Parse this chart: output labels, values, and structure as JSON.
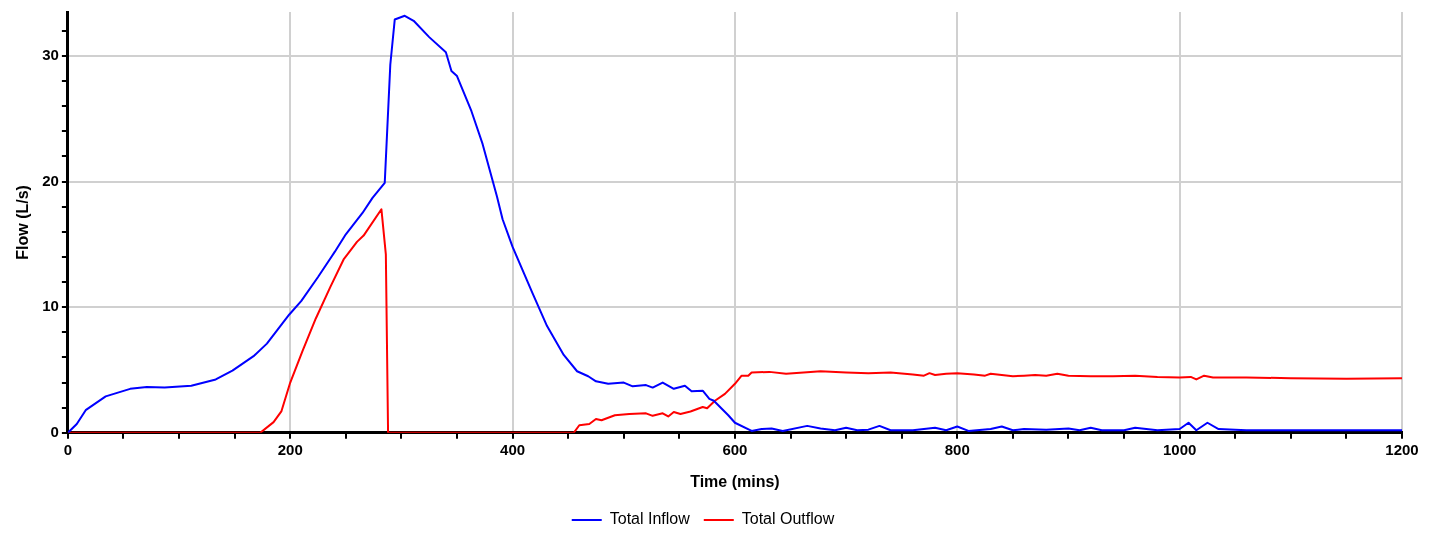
{
  "chart_data": {
    "type": "line",
    "xlabel": "Time (mins)",
    "ylabel": "Flow (L/s)",
    "xlim": [
      0,
      1200
    ],
    "ylim": [
      0,
      33.5
    ],
    "xticks": [
      0,
      {
        "value": 50,
        "label": null
      },
      {
        "value": 100,
        "label": null
      },
      {
        "value": 150,
        "label": null
      },
      200,
      {
        "value": 250,
        "label": null
      },
      {
        "value": 300,
        "label": null
      },
      {
        "value": 350,
        "label": null
      },
      400,
      {
        "value": 450,
        "label": null
      },
      {
        "value": 500,
        "label": null
      },
      {
        "value": 550,
        "label": null
      },
      600,
      {
        "value": 650,
        "label": null
      },
      {
        "value": 700,
        "label": null
      },
      {
        "value": 750,
        "label": null
      },
      800,
      {
        "value": 850,
        "label": null
      },
      {
        "value": 900,
        "label": null
      },
      {
        "value": 950,
        "label": null
      },
      1000,
      {
        "value": 1050,
        "label": null
      },
      {
        "value": 1100,
        "label": null
      },
      {
        "value": 1150,
        "label": null
      },
      1200
    ],
    "yticks": [
      0,
      {
        "value": 2,
        "label": null
      },
      {
        "value": 4,
        "label": null
      },
      {
        "value": 6,
        "label": null
      },
      {
        "value": 8,
        "label": null
      },
      10,
      {
        "value": 12,
        "label": null
      },
      {
        "value": 14,
        "label": null
      },
      {
        "value": 16,
        "label": null
      },
      {
        "value": 18,
        "label": null
      },
      20,
      {
        "value": 22,
        "label": null
      },
      {
        "value": 24,
        "label": null
      },
      {
        "value": 26,
        "label": null
      },
      {
        "value": 28,
        "label": null
      },
      30,
      {
        "value": 32,
        "label": null
      }
    ],
    "grid": true,
    "legend": "bottom",
    "marker": "none",
    "line_style": "solid",
    "series": [
      {
        "name": "Total Inflow",
        "color": "#0000ff",
        "x": [
          0,
          8,
          16,
          34,
          56,
          71,
          87,
          111,
          133,
          148,
          167,
          179,
          199,
          210,
          225,
          240,
          250,
          265,
          274,
          285,
          290,
          294,
          303,
          311,
          325,
          340,
          345,
          350,
          363,
          373,
          386,
          391,
          400,
          418,
          431,
          446,
          458,
          468,
          475,
          486,
          500,
          508,
          520,
          526,
          535,
          545,
          555,
          561,
          571,
          577,
          581,
          594,
          600,
          615,
          624,
          633,
          643,
          665,
          677,
          690,
          700,
          710,
          720,
          730,
          740,
          760,
          780,
          790,
          800,
          810,
          830,
          840,
          850,
          860,
          880,
          900,
          910,
          920,
          930,
          950,
          960,
          980,
          1000,
          1008,
          1015,
          1025,
          1035,
          1060,
          1100,
          1200
        ],
        "values": [
          0,
          0.7,
          1.8,
          2.9,
          3.5,
          3.65,
          3.6,
          3.75,
          4.25,
          4.95,
          6.1,
          7.1,
          9.4,
          10.5,
          12.4,
          14.4,
          15.8,
          17.5,
          18.7,
          19.9,
          29.3,
          32.9,
          33.2,
          32.8,
          31.5,
          30.3,
          28.8,
          28.4,
          25.6,
          23,
          18.8,
          17,
          14.8,
          11.1,
          8.5,
          6.2,
          4.9,
          4.5,
          4.1,
          3.9,
          4,
          3.7,
          3.8,
          3.6,
          4,
          3.5,
          3.75,
          3.3,
          3.35,
          2.7,
          2.55,
          1.4,
          0.8,
          0.15,
          0.3,
          0.35,
          0.15,
          0.55,
          0.35,
          0.2,
          0.4,
          0.2,
          0.25,
          0.55,
          0.2,
          0.2,
          0.4,
          0.2,
          0.5,
          0.15,
          0.3,
          0.5,
          0.2,
          0.3,
          0.25,
          0.35,
          0.2,
          0.4,
          0.2,
          0.2,
          0.4,
          0.2,
          0.3,
          0.8,
          0.2,
          0.8,
          0.3,
          0.2,
          0.2,
          0.2
        ]
      },
      {
        "name": "Total Outflow",
        "color": "#ff0000",
        "x": [
          0,
          173,
          185,
          192,
          200,
          211,
          223,
          236,
          248,
          260,
          266,
          282,
          286,
          288,
          455,
          460,
          469,
          475,
          480,
          492,
          505,
          520,
          526,
          535,
          540,
          545,
          551,
          560,
          571,
          575,
          582,
          591,
          600,
          606,
          612,
          615,
          631,
          646,
          668,
          677,
          700,
          720,
          740,
          760,
          770,
          775,
          780,
          790,
          800,
          815,
          825,
          830,
          840,
          850,
          860,
          870,
          880,
          890,
          900,
          920,
          940,
          960,
          980,
          1000,
          1010,
          1015,
          1022,
          1030,
          1060,
          1100,
          1150,
          1200
        ],
        "values": [
          0,
          0,
          0.85,
          1.7,
          4,
          6.5,
          9.1,
          11.6,
          13.8,
          15.2,
          15.7,
          17.8,
          14.2,
          0,
          0,
          0.6,
          0.7,
          1.1,
          1,
          1.4,
          1.5,
          1.55,
          1.35,
          1.55,
          1.3,
          1.65,
          1.5,
          1.7,
          2.05,
          1.95,
          2.55,
          3.1,
          3.9,
          4.55,
          4.55,
          4.8,
          4.85,
          4.7,
          4.85,
          4.9,
          4.8,
          4.75,
          4.8,
          4.65,
          4.55,
          4.75,
          4.6,
          4.7,
          4.75,
          4.65,
          4.55,
          4.7,
          4.6,
          4.5,
          4.55,
          4.6,
          4.55,
          4.7,
          4.55,
          4.5,
          4.5,
          4.55,
          4.45,
          4.4,
          4.45,
          4.25,
          4.55,
          4.4,
          4.4,
          4.35,
          4.3,
          4.35
        ]
      }
    ]
  }
}
